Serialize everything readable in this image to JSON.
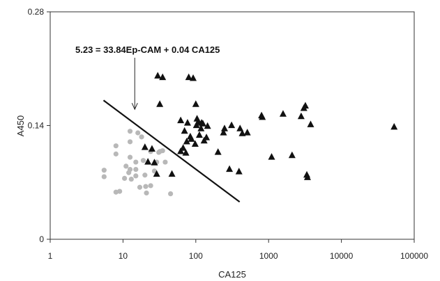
{
  "chart_data": {
    "type": "scatter",
    "xlabel": "CA125",
    "ylabel": "A450",
    "xscale": "log",
    "xlim": [
      1,
      100000
    ],
    "ylim": [
      0,
      0.28
    ],
    "x_ticks": [
      1,
      10,
      100,
      1000,
      10000,
      100000
    ],
    "x_tick_labels": [
      "1",
      "10",
      "100",
      "1000",
      "10000",
      "100000"
    ],
    "y_ticks": [
      0,
      0.14,
      0.28
    ],
    "y_tick_labels": [
      "0",
      "0.14",
      "0.28"
    ],
    "grid": false,
    "annotation": {
      "text": "5.23 = 33.84Ep-CAM + 0.04 CA125",
      "arrow_target": {
        "x": 14.5,
        "y": 0.16
      }
    },
    "line": {
      "x": [
        5.4,
        400
      ],
      "y": [
        0.171,
        0.046
      ]
    },
    "series": [
      {
        "marker": "circle",
        "color": "#b8b8b8",
        "points": [
          [
            5.5,
            0.085
          ],
          [
            5.5,
            0.077
          ],
          [
            8,
            0.115
          ],
          [
            8,
            0.105
          ],
          [
            8,
            0.058
          ],
          [
            9,
            0.059
          ],
          [
            10.5,
            0.075
          ],
          [
            11,
            0.09
          ],
          [
            12,
            0.082
          ],
          [
            12.5,
            0.133
          ],
          [
            12.5,
            0.12
          ],
          [
            12.5,
            0.101
          ],
          [
            12.5,
            0.086
          ],
          [
            13,
            0.074
          ],
          [
            15,
            0.095
          ],
          [
            15,
            0.086
          ],
          [
            15,
            0.078
          ],
          [
            16,
            0.131
          ],
          [
            17,
            0.064
          ],
          [
            18,
            0.126
          ],
          [
            19,
            0.097
          ],
          [
            20,
            0.079
          ],
          [
            20.5,
            0.065
          ],
          [
            21,
            0.057
          ],
          [
            24,
            0.108
          ],
          [
            24,
            0.066
          ],
          [
            27,
            0.084
          ],
          [
            29,
            0.095
          ],
          [
            31,
            0.107
          ],
          [
            32,
            0.108
          ],
          [
            35,
            0.109
          ],
          [
            38,
            0.095
          ],
          [
            45,
            0.056
          ]
        ]
      },
      {
        "marker": "triangle",
        "color": "#111111",
        "points": [
          [
            20,
            0.114
          ],
          [
            22,
            0.096
          ],
          [
            25,
            0.112
          ],
          [
            27,
            0.095
          ],
          [
            29,
            0.081
          ],
          [
            30,
            0.202
          ],
          [
            32,
            0.167
          ],
          [
            35,
            0.2
          ],
          [
            47,
            0.081
          ],
          [
            62,
            0.109
          ],
          [
            62,
            0.147
          ],
          [
            67,
            0.113
          ],
          [
            70,
            0.134
          ],
          [
            73,
            0.107
          ],
          [
            75,
            0.121
          ],
          [
            77,
            0.144
          ],
          [
            80,
            0.2
          ],
          [
            84,
            0.127
          ],
          [
            87,
            0.124
          ],
          [
            92,
            0.199
          ],
          [
            98,
            0.118
          ],
          [
            100,
            0.167
          ],
          [
            102,
            0.141
          ],
          [
            104,
            0.149
          ],
          [
            108,
            0.145
          ],
          [
            112,
            0.129
          ],
          [
            118,
            0.137
          ],
          [
            120,
            0.144
          ],
          [
            125,
            0.143
          ],
          [
            130,
            0.122
          ],
          [
            140,
            0.126
          ],
          [
            145,
            0.14
          ],
          [
            202,
            0.108
          ],
          [
            240,
            0.132
          ],
          [
            248,
            0.137
          ],
          [
            290,
            0.087
          ],
          [
            310,
            0.141
          ],
          [
            392,
            0.084
          ],
          [
            405,
            0.137
          ],
          [
            435,
            0.131
          ],
          [
            510,
            0.132
          ],
          [
            800,
            0.153
          ],
          [
            820,
            0.151
          ],
          [
            1100,
            0.102
          ],
          [
            1580,
            0.155
          ],
          [
            2100,
            0.104
          ],
          [
            2800,
            0.152
          ],
          [
            3050,
            0.162
          ],
          [
            3200,
            0.165
          ],
          [
            3350,
            0.08
          ],
          [
            3420,
            0.077
          ],
          [
            3780,
            0.142
          ],
          [
            53000,
            0.139
          ]
        ]
      }
    ]
  }
}
